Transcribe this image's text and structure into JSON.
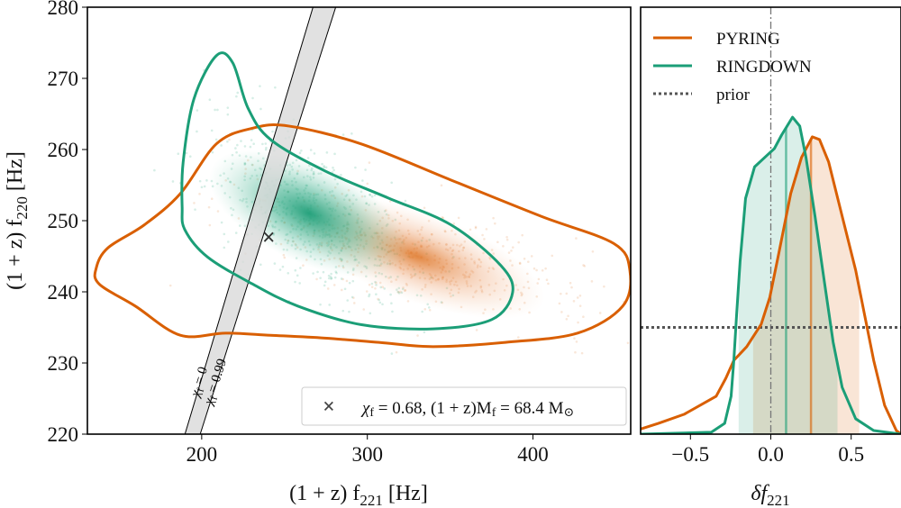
{
  "chart_data": [
    {
      "type": "scatter",
      "xlabel_main": "(1 + z) f",
      "xlabel_sub": "221",
      "xlabel_unit": " [Hz]",
      "ylabel_main": "(1 + z) f",
      "ylabel_sub": "220",
      "ylabel_unit": " [Hz]",
      "xlim": [
        131,
        459
      ],
      "ylim": [
        220,
        280
      ],
      "xticks": [
        200,
        300,
        400
      ],
      "yticks": [
        220,
        230,
        240,
        250,
        260,
        270,
        280
      ],
      "colors": {
        "PYRING": "#d95f02",
        "RINGDOWN": "#1b9e77",
        "band": "#d9d9d9"
      },
      "contours": [
        {
          "series": "PYRING",
          "points": [
            [
              136.4,
              243.4
            ],
            [
              143.5,
              246.2
            ],
            [
              165.3,
              249.4
            ],
            [
              187.1,
              253.8
            ],
            [
              208.9,
              260.8
            ],
            [
              230.7,
              263.0
            ],
            [
              252.5,
              263.3
            ],
            [
              296.1,
              260.8
            ],
            [
              350.6,
              255.7
            ],
            [
              405.1,
              250.6
            ],
            [
              448.7,
              246.8
            ],
            [
              458.5,
              243.0
            ],
            [
              454.2,
              238.0
            ],
            [
              427.0,
              234.2
            ],
            [
              383.3,
              232.9
            ],
            [
              339.7,
              232.3
            ],
            [
              307.0,
              232.9
            ],
            [
              274.3,
              233.5
            ],
            [
              241.6,
              233.9
            ],
            [
              214.4,
              234.2
            ],
            [
              187.1,
              233.9
            ],
            [
              159.9,
              238.0
            ],
            [
              138.1,
              241.1
            ]
          ]
        },
        {
          "series": "RINGDOWN",
          "points": [
            [
              188.2,
              251.9
            ],
            [
              188.8,
              258.2
            ],
            [
              195.3,
              267.1
            ],
            [
              208.9,
              273.2
            ],
            [
              218.7,
              272.2
            ],
            [
              228.0,
              265.8
            ],
            [
              241.6,
              261.4
            ],
            [
              274.3,
              257.0
            ],
            [
              312.5,
              253.2
            ],
            [
              350.6,
              249.4
            ],
            [
              380.6,
              243.7
            ],
            [
              387.7,
              239.9
            ],
            [
              375.1,
              236.1
            ],
            [
              339.7,
              234.8
            ],
            [
              296.1,
              235.4
            ],
            [
              258.0,
              238.0
            ],
            [
              230.7,
              241.1
            ],
            [
              203.5,
              244.9
            ],
            [
              189.9,
              248.7
            ]
          ]
        }
      ],
      "density_centers": {
        "PYRING": [
          330,
          245
        ],
        "RINGDOWN": [
          265,
          251
        ]
      },
      "band_lines": [
        {
          "label_main": "χ",
          "label_sub": "f",
          "label_rest": " = 0",
          "points": [
            [
              189.9,
              220
            ],
            [
              267.2,
              280
            ]
          ]
        },
        {
          "label_main": "χ",
          "label_sub": "f",
          "label_rest": " = 0.99",
          "points": [
            [
              199.1,
              220
            ],
            [
              280.9,
              280
            ]
          ]
        }
      ],
      "marker": {
        "x": 240.5,
        "y": 247.6,
        "symbol": "×"
      },
      "legend": {
        "placement": "lower-right",
        "text_a": "χ",
        "sub_a": "f",
        "text_b": " = 0.68, (1 + z)M",
        "sub_b": "f",
        "text_c": " = 68.4 M",
        "sun": "⊙"
      }
    },
    {
      "type": "line",
      "xlabel_main": "δf",
      "xlabel_sub": "221",
      "xlim": [
        -0.81,
        0.81
      ],
      "ylim": [
        0,
        2.5
      ],
      "xticks": [
        -0.5,
        0.0,
        0.5
      ],
      "xtick_labels": [
        "−0.5",
        "0.0",
        "0.5"
      ],
      "legend": {
        "placement": "upper-left",
        "entries": [
          "PYRING",
          "RINGDOWN",
          "prior"
        ]
      },
      "prior_density": 0.625,
      "reference_x": 0.0,
      "series": [
        {
          "name": "PYRING",
          "color": "#d95f02",
          "median": 0.25,
          "interval": [
            -0.11,
            0.55
          ],
          "points": [
            [
              -0.81,
              0.03
            ],
            [
              -0.7,
              0.063
            ],
            [
              -0.54,
              0.116
            ],
            [
              -0.34,
              0.222
            ],
            [
              -0.28,
              0.327
            ],
            [
              -0.23,
              0.432
            ],
            [
              -0.15,
              0.512
            ],
            [
              -0.06,
              0.643
            ],
            [
              -0.006,
              0.802
            ],
            [
              0.051,
              1.065
            ],
            [
              0.124,
              1.409
            ],
            [
              0.191,
              1.62
            ],
            [
              0.258,
              1.741
            ],
            [
              0.303,
              1.725
            ],
            [
              0.36,
              1.593
            ],
            [
              0.444,
              1.276
            ],
            [
              0.528,
              0.96
            ],
            [
              0.584,
              0.696
            ],
            [
              0.64,
              0.432
            ],
            [
              0.708,
              0.169
            ],
            [
              0.781,
              0.021
            ],
            [
              0.81,
              0
            ]
          ]
        },
        {
          "name": "RINGDOWN",
          "color": "#1b9e77",
          "median": 0.095,
          "interval": [
            -0.2,
            0.415
          ],
          "points": [
            [
              -0.81,
              0
            ],
            [
              -0.37,
              0.011
            ],
            [
              -0.287,
              0.063
            ],
            [
              -0.247,
              0.222
            ],
            [
              -0.23,
              0.432
            ],
            [
              -0.213,
              0.696
            ],
            [
              -0.191,
              1.012
            ],
            [
              -0.157,
              1.381
            ],
            [
              -0.101,
              1.565
            ],
            [
              -0.022,
              1.634
            ],
            [
              0.022,
              1.672
            ],
            [
              0.067,
              1.751
            ],
            [
              0.135,
              1.856
            ],
            [
              0.18,
              1.804
            ],
            [
              0.219,
              1.62
            ],
            [
              0.275,
              1.276
            ],
            [
              0.331,
              0.907
            ],
            [
              0.388,
              0.538
            ],
            [
              0.444,
              0.274
            ],
            [
              0.528,
              0.09
            ],
            [
              0.64,
              0.021
            ],
            [
              0.81,
              0
            ]
          ]
        }
      ]
    }
  ]
}
